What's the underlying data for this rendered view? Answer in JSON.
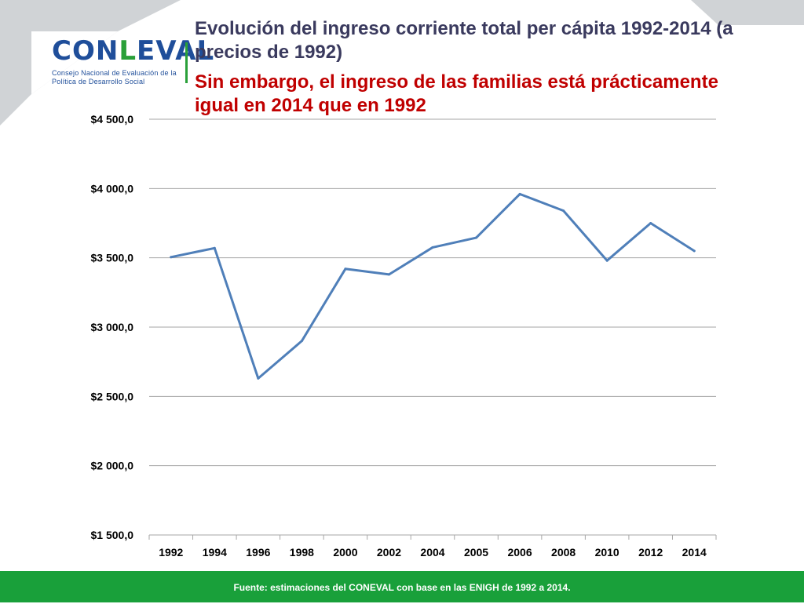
{
  "header": {
    "title": "Evolución del ingreso corriente total per cápita 1992-2014 (a precios de 1992)",
    "subtitle": "Sin embargo, el ingreso de las familias está prácticamente igual en 2014 que en 1992"
  },
  "logo": {
    "word_a": "CON",
    "word_b": "L",
    "word_c": "EVAL",
    "tagline": "Consejo Nacional de Evaluación de la Política de Desarrollo Social"
  },
  "footer": {
    "source": "Fuente: estimaciones del CONEVAL con base en las ENIGH de 1992 a 2014."
  },
  "colors": {
    "line": "#4f7fb9",
    "title": "#3a3a5e",
    "subtitle": "#c00000",
    "footer_bg": "#19a03a",
    "grid": "#a6a6a6"
  },
  "chart_data": {
    "type": "line",
    "categories": [
      "1992",
      "1994",
      "1996",
      "1998",
      "2000",
      "2002",
      "2004",
      "2005",
      "2006",
      "2008",
      "2010",
      "2012",
      "2014"
    ],
    "values": [
      3505,
      3570,
      2630,
      2900,
      3420,
      3380,
      3575,
      3645,
      3960,
      3840,
      3480,
      3750,
      3550
    ],
    "ylim": [
      1500,
      4500
    ],
    "yticks": [
      4500,
      4000,
      3500,
      3000,
      2500,
      2000,
      1500
    ],
    "ytick_labels": [
      "$4 500,0",
      "$4 000,0",
      "$3 500,0",
      "$3 000,0",
      "$2 500,0",
      "$2 000,0",
      "$1 500,0"
    ],
    "grid": true,
    "legend": "none"
  }
}
